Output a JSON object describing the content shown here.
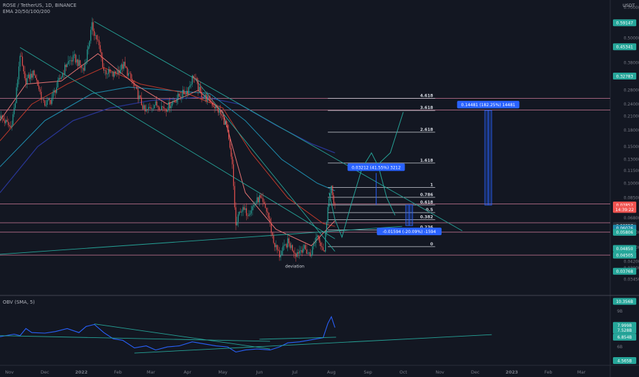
{
  "header": {
    "symbol": "ROSE / TetherUS, 1D, BINANCE",
    "indicator": "EMA 20/50/100/200",
    "axis_unit": "USDT",
    "obv_label": "OBV (SMA, 5)"
  },
  "colors": {
    "background": "#131722",
    "up": "#26a69a",
    "down": "#ef5350",
    "ema20": "#e57373",
    "ema50": "#c0392b",
    "ema100": "#1e88a8",
    "ema200": "#283593",
    "trendline": "#26a69a",
    "fib_line": "#d1d4dc",
    "projection": "#26a69a",
    "measure_box": "#2962ff",
    "obv_line": "#2962ff",
    "pink_level": "#f48fb1"
  },
  "chart_data": [
    {
      "type": "line",
      "title": "ROSE / TetherUS, 1D, BINANCE",
      "scale": "log",
      "ylim": [
        0.0295,
        0.75
      ],
      "y_ticks": [
        "0.70000",
        "0.50000",
        "0.38000",
        "0.28000",
        "0.24000",
        "0.21000",
        "0.18000",
        "0.15000",
        "0.13000",
        "0.11500",
        "0.10000",
        "0.08500",
        "0.06800",
        "0.05800",
        "0.04900",
        "0.04200",
        "0.03900",
        "0.03450"
      ],
      "x_ticks": [
        "Nov",
        "Dec",
        "2022",
        "Feb",
        "Mar",
        "Apr",
        "May",
        "Jun",
        "Jul",
        "Aug",
        "Sep",
        "Oct",
        "Nov",
        "Dec",
        "2023",
        "Feb",
        "Mar"
      ],
      "price_path": [
        [
          "2021-10-24",
          0.21
        ],
        [
          "2021-11-02",
          0.185
        ],
        [
          "2021-11-06",
          0.245
        ],
        [
          "2021-11-10",
          0.42
        ],
        [
          "2021-11-14",
          0.31
        ],
        [
          "2021-11-22",
          0.34
        ],
        [
          "2021-11-30",
          0.24
        ],
        [
          "2021-12-06",
          0.25
        ],
        [
          "2021-12-12",
          0.3
        ],
        [
          "2021-12-20",
          0.38
        ],
        [
          "2021-12-26",
          0.4
        ],
        [
          "2022-01-03",
          0.35
        ],
        [
          "2022-01-10",
          0.57
        ],
        [
          "2022-01-15",
          0.48
        ],
        [
          "2022-01-20",
          0.35
        ],
        [
          "2022-01-28",
          0.33
        ],
        [
          "2022-02-06",
          0.37
        ],
        [
          "2022-02-14",
          0.3
        ],
        [
          "2022-02-24",
          0.22
        ],
        [
          "2022-03-04",
          0.24
        ],
        [
          "2022-03-14",
          0.23
        ],
        [
          "2022-03-24",
          0.26
        ],
        [
          "2022-04-01",
          0.28
        ],
        [
          "2022-04-06",
          0.33
        ],
        [
          "2022-04-12",
          0.27
        ],
        [
          "2022-04-20",
          0.25
        ],
        [
          "2022-04-28",
          0.22
        ],
        [
          "2022-05-04",
          0.19
        ],
        [
          "2022-05-09",
          0.12
        ],
        [
          "2022-05-12",
          0.062
        ],
        [
          "2022-05-16",
          0.075
        ],
        [
          "2022-05-22",
          0.072
        ],
        [
          "2022-06-01",
          0.085
        ],
        [
          "2022-06-08",
          0.072
        ],
        [
          "2022-06-13",
          0.052
        ],
        [
          "2022-06-18",
          0.045
        ],
        [
          "2022-06-25",
          0.052
        ],
        [
          "2022-07-02",
          0.046
        ],
        [
          "2022-07-08",
          0.049
        ],
        [
          "2022-07-14",
          0.045
        ],
        [
          "2022-07-20",
          0.057
        ],
        [
          "2022-07-26",
          0.047
        ],
        [
          "2022-07-29",
          0.08
        ],
        [
          "2022-08-01",
          0.093
        ],
        [
          "2022-08-04",
          0.0785
        ]
      ],
      "ema20": [
        [
          "2021-10-24",
          0.2
        ],
        [
          "2021-11-15",
          0.3
        ],
        [
          "2021-12-15",
          0.31
        ],
        [
          "2022-01-15",
          0.42
        ],
        [
          "2022-02-15",
          0.3
        ],
        [
          "2022-03-15",
          0.24
        ],
        [
          "2022-04-10",
          0.28
        ],
        [
          "2022-05-01",
          0.22
        ],
        [
          "2022-05-20",
          0.09
        ],
        [
          "2022-06-15",
          0.06
        ],
        [
          "2022-07-15",
          0.05
        ],
        [
          "2022-08-04",
          0.066
        ]
      ],
      "ema50": [
        [
          "2021-10-24",
          0.16
        ],
        [
          "2021-11-20",
          0.24
        ],
        [
          "2021-12-20",
          0.3
        ],
        [
          "2022-01-20",
          0.36
        ],
        [
          "2022-02-20",
          0.3
        ],
        [
          "2022-04-01",
          0.27
        ],
        [
          "2022-05-01",
          0.23
        ],
        [
          "2022-05-25",
          0.14
        ],
        [
          "2022-06-25",
          0.085
        ],
        [
          "2022-07-25",
          0.064
        ],
        [
          "2022-08-04",
          0.062
        ]
      ],
      "ema100": [
        [
          "2021-10-24",
          0.12
        ],
        [
          "2021-12-01",
          0.2
        ],
        [
          "2022-01-10",
          0.27
        ],
        [
          "2022-02-10",
          0.29
        ],
        [
          "2022-03-15",
          0.28
        ],
        [
          "2022-04-20",
          0.27
        ],
        [
          "2022-05-20",
          0.2
        ],
        [
          "2022-06-20",
          0.13
        ],
        [
          "2022-07-20",
          0.1
        ],
        [
          "2022-08-04",
          0.092
        ]
      ],
      "ema200": [
        [
          "2021-10-24",
          0.09
        ],
        [
          "2021-11-25",
          0.15
        ],
        [
          "2021-12-25",
          0.2
        ],
        [
          "2022-01-25",
          0.23
        ],
        [
          "2022-03-01",
          0.25
        ],
        [
          "2022-04-15",
          0.26
        ],
        [
          "2022-05-15",
          0.24
        ],
        [
          "2022-06-15",
          0.19
        ],
        [
          "2022-07-15",
          0.155
        ],
        [
          "2022-08-04",
          0.14
        ]
      ],
      "trendlines": [
        [
          [
            "2021-11-10",
            0.45
          ],
          [
            "2022-08-04",
            0.054
          ]
        ],
        [
          [
            "2022-01-12",
            0.6
          ],
          [
            "2022-11-20",
            0.059
          ]
        ],
        [
          [
            "2022-04-05",
            0.33
          ],
          [
            "2022-08-04",
            0.047
          ]
        ],
        [
          [
            "2021-10-24",
            0.0455
          ],
          [
            "2022-09-30",
            0.062
          ]
        ]
      ],
      "projection_path": [
        [
          "2022-07-30",
          0.09
        ],
        [
          "2022-08-04",
          0.067
        ],
        [
          "2022-08-10",
          0.055
        ],
        [
          "2022-08-18",
          0.08
        ],
        [
          "2022-08-27",
          0.118
        ],
        [
          "2022-09-04",
          0.14
        ],
        [
          "2022-09-10",
          0.12
        ],
        [
          "2022-09-17",
          0.085
        ],
        [
          "2022-09-24",
          0.07
        ]
      ],
      "projection_path_2": [
        [
          "2022-09-04",
          0.115
        ],
        [
          "2022-09-20",
          0.14
        ],
        [
          "2022-10-01",
          0.22
        ]
      ],
      "fib_levels": [
        {
          "label": "4.618",
          "value": 0.256
        },
        {
          "label": "3.618",
          "value": 0.224
        },
        {
          "label": "2.618",
          "value": 0.176
        },
        {
          "label": "1.618",
          "value": 0.125
        },
        {
          "label": "1",
          "value": 0.0955
        },
        {
          "label": "0.786",
          "value": 0.0855
        },
        {
          "label": "0.618",
          "value": 0.0786
        },
        {
          "label": "0.5",
          "value": 0.0722
        },
        {
          "label": "0.382",
          "value": 0.0667
        },
        {
          "label": "0.236",
          "value": 0.0596
        },
        {
          "label": "0",
          "value": 0.0495
        }
      ],
      "fib_range": [
        "2022-07-29",
        "2022-10-28"
      ],
      "pink_levels": [
        0.256,
        0.225,
        0.0795,
        0.0645,
        0.0581,
        0.0451
      ],
      "measurements": [
        {
          "label": "0.03212 (41.55%) 3212",
          "from": 0.0785,
          "to": 0.112,
          "date": "2022-09-08"
        },
        {
          "label": "-0.01594 (-20.09%) -1594",
          "from": 0.0785,
          "to": 0.0625,
          "date": "2022-10-06"
        },
        {
          "label": "0.14481 (182.25%) 14481",
          "from": 0.0785,
          "to": 0.224,
          "date": "2022-12-12"
        }
      ],
      "annotation": {
        "text": "deviation",
        "date": "2022-07-01",
        "value": 0.0392
      },
      "price_tags": [
        {
          "text": "0.59147",
          "value": 0.59147,
          "color": "#26a69a"
        },
        {
          "text": "0.45341",
          "value": 0.45341,
          "color": "#26a69a"
        },
        {
          "text": "0.32783",
          "value": 0.32783,
          "color": "#26a69a"
        },
        {
          "text": "0.07852",
          "value": 0.07852,
          "color": "#ef5350"
        },
        {
          "text": "14:39:22",
          "value": 0.0748,
          "color": "#ef5350"
        },
        {
          "text": "0.06257",
          "value": 0.06257,
          "color": "#2a2e39"
        },
        {
          "text": "0.06076",
          "value": 0.06076,
          "color": "#1e88a8"
        },
        {
          "text": "0.05806",
          "value": 0.05806,
          "color": "#26a69a"
        },
        {
          "text": "0.04850",
          "value": 0.0485,
          "color": "#26a69a"
        },
        {
          "text": "0.04505",
          "value": 0.04505,
          "color": "#26a69a"
        },
        {
          "text": "0.03768",
          "value": 0.03768,
          "color": "#26a69a"
        }
      ]
    },
    {
      "type": "line",
      "title": "OBV (SMA, 5)",
      "ylim": [
        4.3,
        10.6
      ],
      "y_ticks": [
        "9B",
        "7B",
        "6B",
        "4B"
      ],
      "series": [
        {
          "name": "OBV (SMA, 5)",
          "values": [
            [
              "2021-10-24",
              6.9
            ],
            [
              "2021-11-05",
              7.15
            ],
            [
              "2021-11-10",
              7.0
            ],
            [
              "2021-11-15",
              7.7
            ],
            [
              "2021-11-20",
              7.3
            ],
            [
              "2021-12-01",
              7.25
            ],
            [
              "2021-12-10",
              7.4
            ],
            [
              "2021-12-20",
              7.7
            ],
            [
              "2021-12-30",
              7.3
            ],
            [
              "2022-01-05",
              7.9
            ],
            [
              "2022-01-12",
              8.1
            ],
            [
              "2022-01-20",
              7.3
            ],
            [
              "2022-01-28",
              6.7
            ],
            [
              "2022-02-05",
              6.55
            ],
            [
              "2022-02-15",
              5.8
            ],
            [
              "2022-02-25",
              6.0
            ],
            [
              "2022-03-05",
              5.6
            ],
            [
              "2022-03-15",
              5.9
            ],
            [
              "2022-03-25",
              6.0
            ],
            [
              "2022-04-05",
              6.4
            ],
            [
              "2022-04-15",
              6.2
            ],
            [
              "2022-04-25",
              6.0
            ],
            [
              "2022-05-05",
              5.9
            ],
            [
              "2022-05-12",
              5.4
            ],
            [
              "2022-05-20",
              5.6
            ],
            [
              "2022-05-30",
              5.7
            ],
            [
              "2022-06-10",
              5.6
            ],
            [
              "2022-06-18",
              5.9
            ],
            [
              "2022-06-25",
              6.3
            ],
            [
              "2022-07-05",
              6.4
            ],
            [
              "2022-07-15",
              6.6
            ],
            [
              "2022-07-25",
              6.8
            ],
            [
              "2022-07-29",
              8.2
            ],
            [
              "2022-08-01",
              8.85
            ],
            [
              "2022-08-04",
              7.8
            ]
          ]
        }
      ],
      "trendlines": [
        [
          [
            "2021-10-24",
            7.0
          ],
          [
            "2022-06-10",
            6.45
          ]
        ],
        [
          [
            "2022-01-12",
            8.15
          ],
          [
            "2022-06-10",
            5.7
          ]
        ],
        [
          [
            "2022-02-15",
            5.3
          ],
          [
            "2022-12-15",
            7.1
          ]
        ],
        [
          [
            "2022-06-01",
            6.65
          ],
          [
            "2022-08-05",
            6.85
          ]
        ]
      ],
      "price_tags": [
        {
          "text": "10.356B",
          "value": 10.356,
          "color": "#26a69a"
        },
        {
          "text": "7.999B",
          "value": 7.999,
          "color": "#26a69a"
        },
        {
          "text": "7.528B",
          "value": 7.528,
          "color": "#26a69a"
        },
        {
          "text": "6.854B",
          "value": 6.854,
          "color": "#26a69a"
        },
        {
          "text": "4.565B",
          "value": 4.565,
          "color": "#26a69a"
        }
      ]
    }
  ]
}
